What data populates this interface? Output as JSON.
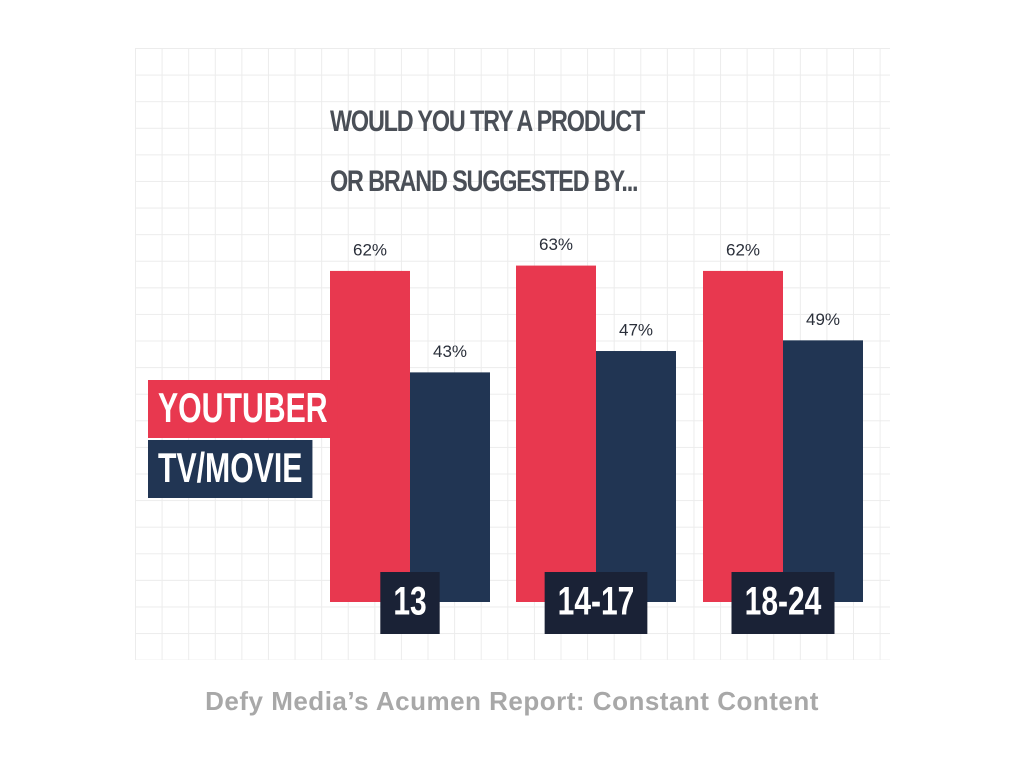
{
  "chart_data": {
    "type": "bar",
    "title": "WOULD YOU TRY A PRODUCT OR BRAND SUGGESTED BY...",
    "categories": [
      "13",
      "14-17",
      "18-24"
    ],
    "series": [
      {
        "name": "YOUTUBER",
        "color": "#e8384f",
        "values": [
          62,
          63,
          62
        ],
        "value_labels": [
          "62%",
          "63%",
          "62%"
        ]
      },
      {
        "name": "TV/MOVIE",
        "color": "#213553",
        "values": [
          43,
          47,
          49
        ],
        "value_labels": [
          "43%",
          "47%",
          "49%"
        ]
      }
    ],
    "source": "Defy Media’s Acumen Report: Constant Content"
  }
}
